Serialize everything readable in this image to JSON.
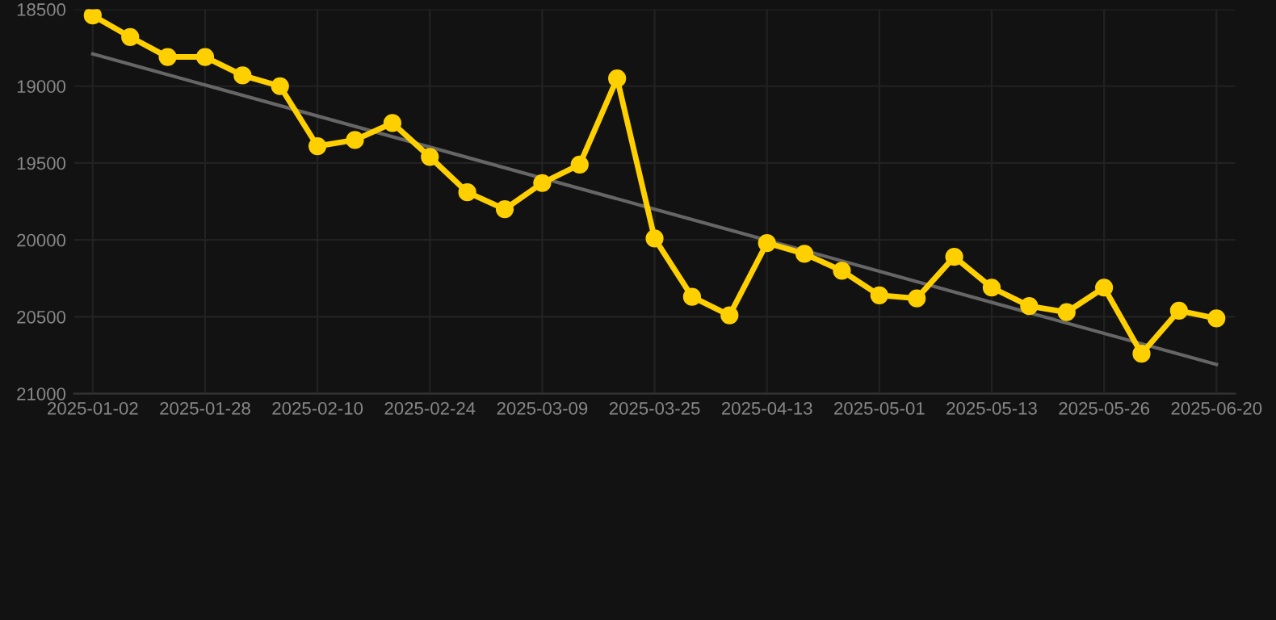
{
  "chart_data": {
    "type": "line",
    "categories": [
      "2025-01-02",
      null,
      null,
      "2025-01-28",
      null,
      null,
      "2025-02-10",
      null,
      null,
      "2025-02-24",
      null,
      null,
      "2025-03-09",
      null,
      null,
      "2025-03-25",
      null,
      null,
      "2025-04-13",
      null,
      null,
      "2025-05-01",
      null,
      null,
      "2025-05-13",
      null,
      null,
      "2025-05-26",
      null,
      null,
      "2025-06-20"
    ],
    "series": [
      {
        "color": "#666666",
        "marker": "none",
        "values": [
          18790,
          null,
          null,
          null,
          null,
          null,
          null,
          null,
          null,
          null,
          null,
          null,
          null,
          null,
          null,
          null,
          null,
          null,
          null,
          null,
          null,
          null,
          null,
          null,
          null,
          null,
          null,
          null,
          null,
          null,
          20810
        ]
      },
      {
        "color": "#ffd000",
        "marker": "circle",
        "values": [
          18540,
          18680,
          18810,
          18810,
          18930,
          19000,
          19390,
          19350,
          19240,
          19460,
          19690,
          19800,
          19630,
          19510,
          18950,
          19990,
          20370,
          20490,
          20020,
          20090,
          20200,
          20360,
          20380,
          20110,
          20310,
          20430,
          20470,
          20310,
          20740,
          20460,
          20510
        ]
      }
    ],
    "ylim": [
      21000,
      18500
    ],
    "yticks": [
      18500,
      19000,
      19500,
      20000,
      20500,
      21000
    ],
    "grid": true
  }
}
